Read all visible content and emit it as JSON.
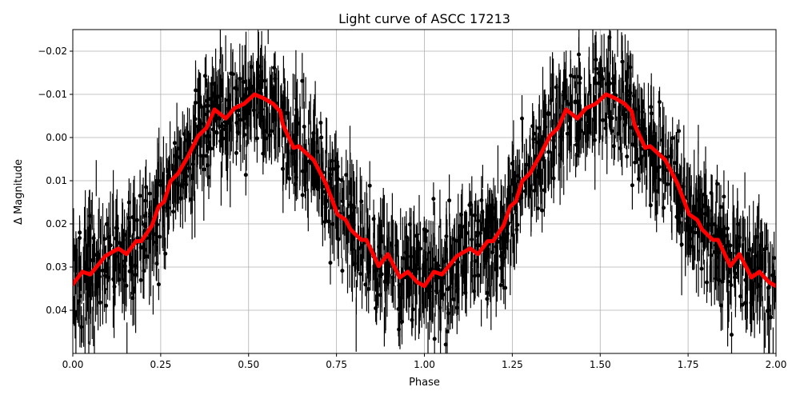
{
  "chart_data": {
    "type": "scatter",
    "title": "Light curve of ASCC 17213",
    "xlabel": "Phase",
    "ylabel": "Δ Magnitude",
    "xlim": [
      0,
      2
    ],
    "ylim": [
      0.05,
      -0.025
    ],
    "y_inverted": true,
    "grid": true,
    "x_ticks": [
      "0.00",
      "0.25",
      "0.50",
      "0.75",
      "1.00",
      "1.25",
      "1.50",
      "1.75",
      "2.00"
    ],
    "x_tick_values": [
      0,
      0.25,
      0.5,
      0.75,
      1,
      1.25,
      1.5,
      1.75,
      2
    ],
    "y_ticks": [
      "−0.02",
      "−0.01",
      "0.00",
      "0.01",
      "0.02",
      "0.03",
      "0.04"
    ],
    "y_tick_values": [
      -0.02,
      -0.01,
      0,
      0.01,
      0.02,
      0.03,
      0.04
    ],
    "series": [
      {
        "kind": "errorbar-points",
        "color": "#000000",
        "description_visible": "dense black points with vertical error bars scattered about the red curve"
      },
      {
        "kind": "line",
        "color": "#ff0000",
        "x": [
          0.0,
          0.027,
          0.05,
          0.093,
          0.13,
          0.153,
          0.18,
          0.195,
          0.225,
          0.244,
          0.26,
          0.278,
          0.3,
          0.328,
          0.357,
          0.38,
          0.403,
          0.435,
          0.46,
          0.487,
          0.517,
          0.543,
          0.57,
          0.59,
          0.597,
          0.628,
          0.642,
          0.685,
          0.72,
          0.753,
          0.776,
          0.79,
          0.82,
          0.835,
          0.87,
          0.896,
          0.93,
          0.953,
          0.98,
          1.0,
          1.027,
          1.05,
          1.093,
          1.13,
          1.153,
          1.18,
          1.195,
          1.225,
          1.244,
          1.26,
          1.278,
          1.3,
          1.328,
          1.357,
          1.38,
          1.403,
          1.435,
          1.46,
          1.487,
          1.517,
          1.543,
          1.57,
          1.59,
          1.597,
          1.628,
          1.642,
          1.685,
          1.72,
          1.753,
          1.776,
          1.79,
          1.82,
          1.835,
          1.87,
          1.896,
          1.93,
          1.953,
          1.98,
          2.0
        ],
        "y": [
          0.034,
          0.0311,
          0.0317,
          0.0274,
          0.0257,
          0.027,
          0.024,
          0.024,
          0.0204,
          0.016,
          0.0148,
          0.0101,
          0.0083,
          0.0043,
          -0.0004,
          -0.0022,
          -0.0065,
          -0.0044,
          -0.0068,
          -0.0078,
          -0.01,
          -0.0091,
          -0.0078,
          -0.006,
          -0.0031,
          0.0024,
          0.002,
          0.0052,
          0.0107,
          0.0178,
          0.0191,
          0.0213,
          0.0237,
          0.0237,
          0.0298,
          0.027,
          0.0324,
          0.0311,
          0.0335,
          0.0344,
          0.0311,
          0.0317,
          0.0274,
          0.0257,
          0.027,
          0.024,
          0.024,
          0.0204,
          0.016,
          0.0148,
          0.0101,
          0.0083,
          0.0043,
          -0.0004,
          -0.0022,
          -0.0065,
          -0.0044,
          -0.0068,
          -0.0078,
          -0.01,
          -0.0091,
          -0.0078,
          -0.006,
          -0.0031,
          0.0024,
          0.002,
          0.0052,
          0.0107,
          0.0178,
          0.0191,
          0.0213,
          0.0237,
          0.0237,
          0.0298,
          0.027,
          0.0324,
          0.0311,
          0.0335,
          0.0344
        ]
      }
    ]
  }
}
